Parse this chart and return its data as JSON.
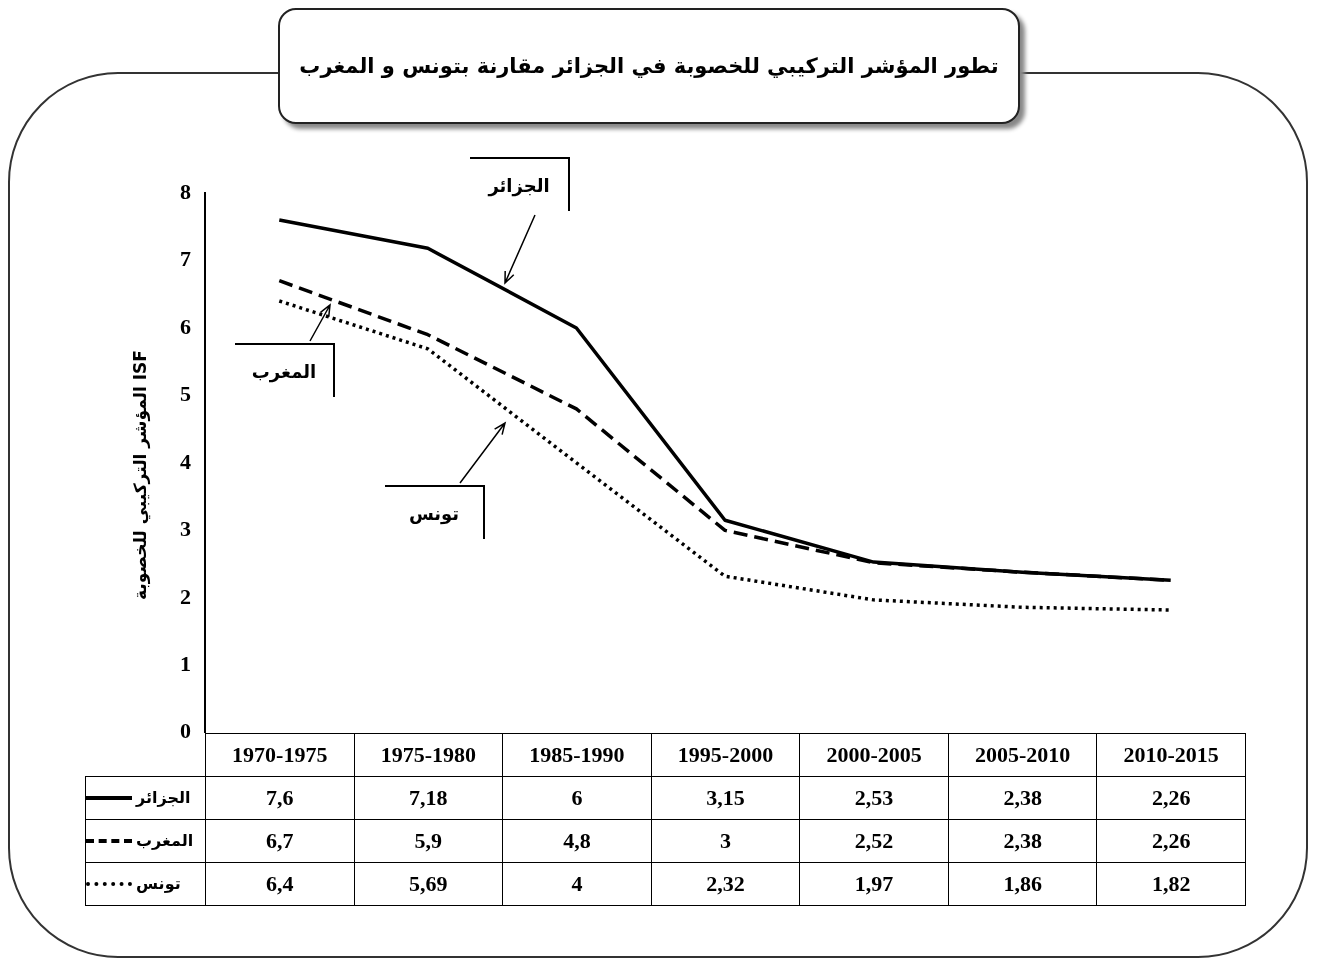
{
  "chart_data": {
    "type": "line",
    "title": "تطور المؤشر التركيبي للخصوبة في الجزائر مقارنة بتونس و المغرب",
    "ylabel": "المؤشر التركيبي للخصوبة ISF",
    "categories": [
      "1970-1975",
      "1975-1980",
      "1985-1990",
      "1995-2000",
      "2000-2005",
      "2005-2010",
      "2010-2015"
    ],
    "series": [
      {
        "name": "الجزائر",
        "color": "#000000",
        "line_style": "solid",
        "values": [
          7.6,
          7.18,
          6,
          3.15,
          2.53,
          2.38,
          2.26
        ],
        "value_labels": [
          "7,6",
          "7,18",
          "6",
          "3,15",
          "2,53",
          "2,38",
          "2,26"
        ]
      },
      {
        "name": "المغرب",
        "color": "#000000",
        "line_style": "dashed",
        "values": [
          6.7,
          5.9,
          4.8,
          3,
          2.52,
          2.38,
          2.26
        ],
        "value_labels": [
          "6,7",
          "5,9",
          "4,8",
          "3",
          "2,52",
          "2,38",
          "2,26"
        ]
      },
      {
        "name": "تونس",
        "color": "#000000",
        "line_style": "dotted",
        "values": [
          6.4,
          5.69,
          4,
          2.32,
          1.97,
          1.86,
          1.82
        ],
        "value_labels": [
          "6,4",
          "5,69",
          "4",
          "2,32",
          "1,97",
          "1,86",
          "1,82"
        ]
      }
    ],
    "ylim": [
      0,
      8
    ],
    "yticks": [
      0,
      1,
      2,
      3,
      4,
      5,
      6,
      7,
      8
    ],
    "grid": false,
    "legend": "bottom",
    "marker": "none",
    "annotations": [
      "الجزائر",
      "المغرب",
      "تونس"
    ]
  }
}
